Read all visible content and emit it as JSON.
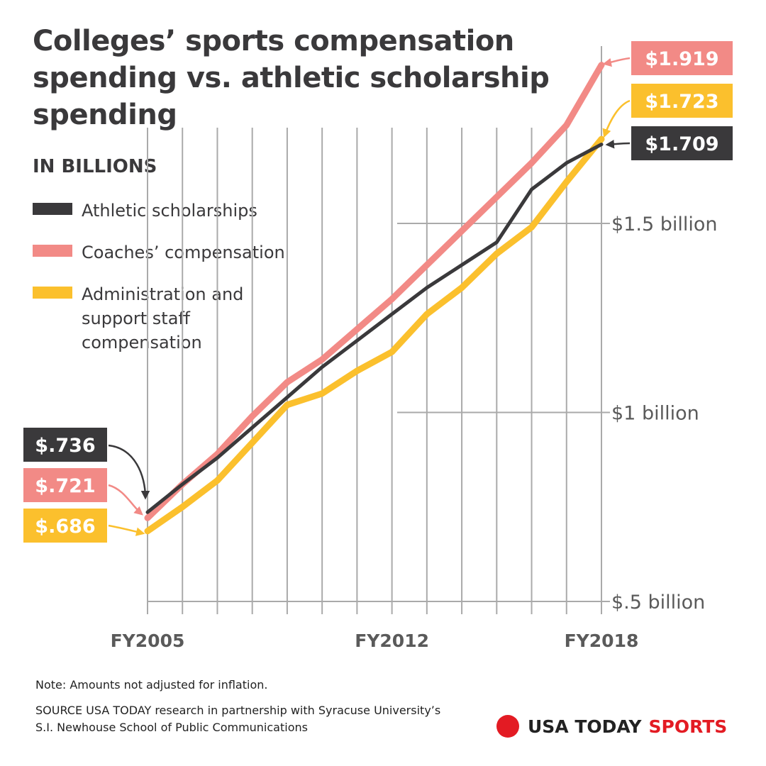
{
  "title": "Colleges’ sports compensation spending vs. athletic scholarship spending",
  "unit_label": "IN BILLIONS",
  "legend": [
    {
      "label": "Athletic scholarships",
      "color": "#3a393b"
    },
    {
      "label": "Coaches’ compensation",
      "color": "#f28a86"
    },
    {
      "label": "Administration and support staff compensation",
      "color": "#fbc02d"
    }
  ],
  "note": "Note: Amounts not adjusted for inflation.",
  "source": "SOURCE USA TODAY research in partnership with Syracuse University’s S.I. Newhouse School of Public Communications",
  "brand": {
    "usa_today": "USA TODAY",
    "sports": "SPORTS",
    "dot_color": "#e31b23"
  },
  "chart_data": {
    "type": "line",
    "x": [
      2005,
      2006,
      2007,
      2008,
      2009,
      2010,
      2011,
      2012,
      2013,
      2014,
      2015,
      2016,
      2017,
      2018
    ],
    "x_tick_labels": [
      {
        "x": 2005,
        "label": "FY2005"
      },
      {
        "x": 2012,
        "label": "FY2012"
      },
      {
        "x": 2018,
        "label": "FY2018"
      }
    ],
    "y_tick_labels": [
      {
        "y": 0.5,
        "label": "$.5 billion"
      },
      {
        "y": 1.0,
        "label": "$1 billion"
      },
      {
        "y": 1.5,
        "label": "$1.5 billion"
      }
    ],
    "ylim": [
      0.5,
      1.95
    ],
    "grid": true,
    "series": [
      {
        "name": "Athletic scholarships",
        "color": "#3a393b",
        "values": [
          0.736,
          0.81,
          0.88,
          0.96,
          1.04,
          1.12,
          1.19,
          1.26,
          1.33,
          1.39,
          1.45,
          1.59,
          1.66,
          1.709
        ],
        "start_label": "$.736",
        "end_label": "$1.709"
      },
      {
        "name": "Coaches’ compensation",
        "color": "#f28a86",
        "values": [
          0.721,
          0.81,
          0.89,
          0.99,
          1.08,
          1.14,
          1.22,
          1.3,
          1.39,
          1.48,
          1.57,
          1.66,
          1.76,
          1.919
        ],
        "start_label": "$.721",
        "end_label": "$1.919"
      },
      {
        "name": "Administration and support staff compensation",
        "color": "#fbc02d",
        "values": [
          0.686,
          0.75,
          0.82,
          0.92,
          1.02,
          1.05,
          1.11,
          1.16,
          1.26,
          1.33,
          1.42,
          1.49,
          1.61,
          1.723
        ],
        "start_label": "$.686",
        "end_label": "$1.723"
      }
    ]
  }
}
